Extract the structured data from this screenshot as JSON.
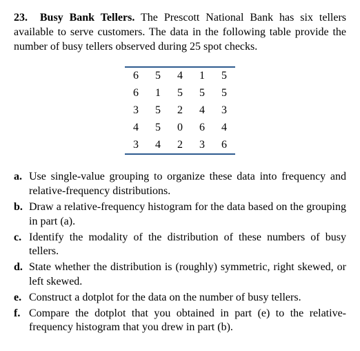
{
  "problem": {
    "number": "23.",
    "title": "Busy Bank Tellers.",
    "intro": "The Prescott National Bank has six tellers available to serve customers. The data in the following table provide the number of busy tellers observed during 25 spot checks."
  },
  "table": {
    "border_color": "#2e5b8f",
    "rows": [
      [
        "6",
        "5",
        "4",
        "1",
        "5"
      ],
      [
        "6",
        "1",
        "5",
        "5",
        "5"
      ],
      [
        "3",
        "5",
        "2",
        "4",
        "3"
      ],
      [
        "4",
        "5",
        "0",
        "6",
        "4"
      ],
      [
        "3",
        "4",
        "2",
        "3",
        "6"
      ]
    ]
  },
  "parts": [
    {
      "letter": "a.",
      "text": "Use single-value grouping to organize these data into frequency and relative-frequency distributions."
    },
    {
      "letter": "b.",
      "text": "Draw a relative-frequency histogram for the data based on the grouping in part (a)."
    },
    {
      "letter": "c.",
      "text": "Identify the modality of the distribution of these numbers of busy tellers."
    },
    {
      "letter": "d.",
      "text": "State whether the distribution is (roughly) symmetric, right skewed, or left skewed."
    },
    {
      "letter": "e.",
      "text": "Construct a dotplot for the data on the number of busy tellers."
    },
    {
      "letter": "f.",
      "text": "Compare the dotplot that you obtained in part (e) to the relative-frequency histogram that you drew in part (b)."
    }
  ]
}
